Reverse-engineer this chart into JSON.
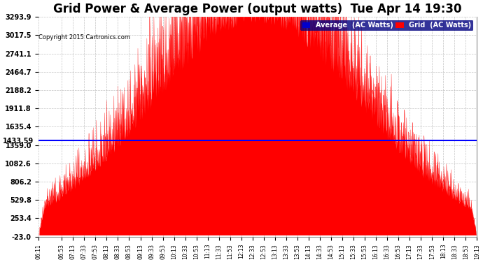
{
  "title": "Grid Power & Average Power (output watts)  Tue Apr 14 19:30",
  "copyright": "Copyright 2015 Cartronics.com",
  "average_value": 1433.59,
  "ymin": -23.0,
  "ymax": 3293.9,
  "ytick_vals": [
    3293.9,
    3017.5,
    2741.1,
    2464.7,
    2188.2,
    1911.8,
    1635.4,
    1359.0,
    1082.6,
    806.2,
    529.8,
    253.4,
    -23.0
  ],
  "ytick_labs": [
    "3293.9",
    "3017.5",
    "2741.1",
    "2464.7",
    "2188.2",
    "1911.8",
    "1635.4",
    "1359.0",
    "1082.6",
    "806.2",
    "529.8",
    "253.4",
    "-23.0"
  ],
  "background_color": "#ffffff",
  "grid_color": "#aaaaaa",
  "fill_color": "#ff0000",
  "line_color": "#ff0000",
  "avg_line_color": "#0000ff",
  "legend_avg_color": "#0000cc",
  "legend_grid_color": "#ff0000",
  "title_fontsize": 12,
  "avg_label": "1433.59",
  "xtick_labels": [
    "06:11",
    "06:53",
    "07:13",
    "07:33",
    "07:53",
    "08:13",
    "08:33",
    "08:53",
    "09:13",
    "09:33",
    "09:53",
    "10:13",
    "10:33",
    "10:53",
    "11:13",
    "11:33",
    "11:53",
    "12:13",
    "12:33",
    "12:53",
    "13:13",
    "13:33",
    "13:53",
    "14:13",
    "14:33",
    "14:53",
    "15:13",
    "15:33",
    "15:53",
    "16:13",
    "16:33",
    "16:53",
    "17:13",
    "17:33",
    "17:53",
    "18:13",
    "18:33",
    "18:53",
    "19:13"
  ]
}
